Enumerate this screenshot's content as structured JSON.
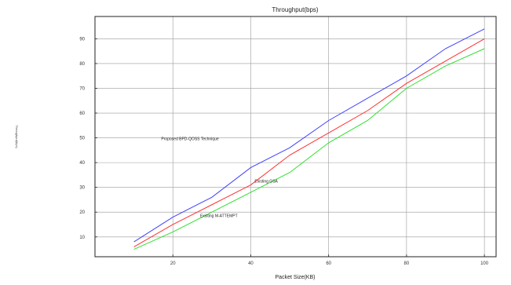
{
  "chart_data": {
    "type": "line",
    "title": "Throughput(bps)",
    "xlabel": "Packet Size(KB)",
    "ylabel": "Throughput(bps)",
    "x": [
      10,
      20,
      30,
      40,
      50,
      60,
      70,
      80,
      90,
      100
    ],
    "xlim": [
      0,
      103
    ],
    "ylim": [
      2,
      99
    ],
    "xticks": [
      20,
      40,
      60,
      80,
      100
    ],
    "yticks": [
      10,
      20,
      30,
      40,
      50,
      60,
      70,
      80,
      90
    ],
    "grid": true,
    "series": [
      {
        "name": "Proposed BPD-QOSS Technique",
        "color": "#4040ff",
        "values": [
          8,
          18,
          26,
          38,
          46,
          57,
          66,
          75,
          86,
          94
        ]
      },
      {
        "name": "Existing GSA",
        "color": "#ff3030",
        "values": [
          6,
          15,
          23,
          31,
          43,
          52,
          61,
          72,
          81,
          90
        ]
      },
      {
        "name": "Existing M-ATTEMPT",
        "color": "#30e030",
        "values": [
          5,
          12,
          20,
          28,
          36,
          48,
          57,
          70,
          79,
          86
        ]
      }
    ],
    "annotations": [
      {
        "text": "Proposed BPD-QOSS Technique",
        "x": 17,
        "y": 49
      },
      {
        "text": "Existing GSA",
        "x": 41,
        "y": 32
      },
      {
        "text": "Existing M-ATTEMPT",
        "x": 27,
        "y": 18
      }
    ]
  }
}
